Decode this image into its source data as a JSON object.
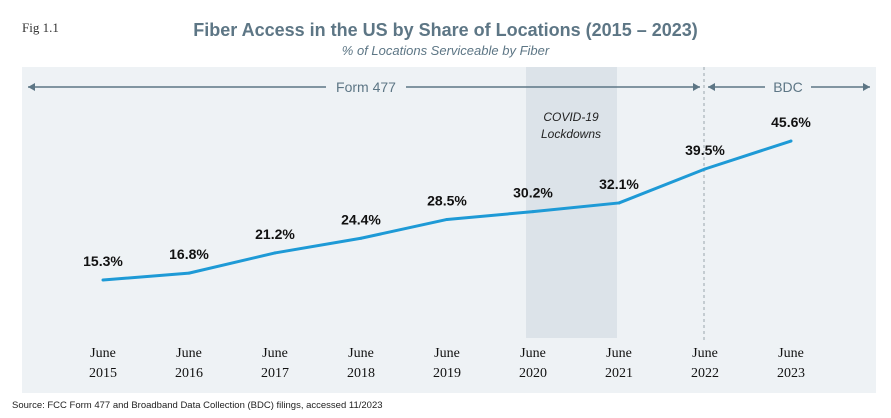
{
  "fig_label": "Fig 1.1",
  "chart_data": {
    "type": "line",
    "title": "Fiber Access in the US by Share of Locations (2015 – 2023)",
    "subtitle": "% of Locations Serviceable by Fiber",
    "categories": [
      [
        "June",
        "2015"
      ],
      [
        "June",
        "2016"
      ],
      [
        "June",
        "2017"
      ],
      [
        "June",
        "2018"
      ],
      [
        "June",
        "2019"
      ],
      [
        "June",
        "2020"
      ],
      [
        "June",
        "2021"
      ],
      [
        "June",
        "2022"
      ],
      [
        "June",
        "2023"
      ]
    ],
    "values": [
      15.3,
      16.8,
      21.2,
      24.4,
      28.5,
      30.2,
      32.1,
      39.5,
      45.6
    ],
    "data_labels": [
      "15.3%",
      "16.8%",
      "21.2%",
      "24.4%",
      "28.5%",
      "30.2%",
      "32.1%",
      "39.5%",
      "45.6%"
    ],
    "line_color": "#1e9ad6",
    "background_color": "#eef2f5",
    "annotations": {
      "shaded_region": {
        "label_lines": [
          "COVID-19",
          "Lockdowns"
        ],
        "from": "June 2020",
        "to": "June 2021",
        "color": "#dce3e9"
      },
      "periods": [
        {
          "label": "Form 477",
          "from": "June 2015",
          "to": "June 2022"
        },
        {
          "label": "BDC",
          "from": "June 2022",
          "to": "June 2023"
        }
      ]
    }
  },
  "source": "Source: FCC Form 477 and Broadband Data Collection (BDC) filings, accessed 11/2023"
}
